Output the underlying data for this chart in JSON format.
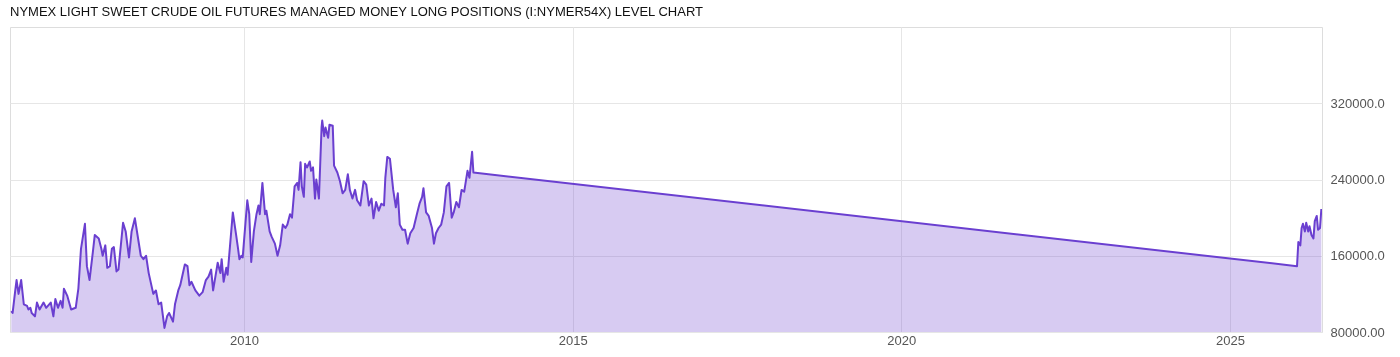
{
  "chart_data": {
    "type": "area",
    "title": "NYMEX LIGHT SWEET CRUDE OIL FUTURES MANAGED MONEY LONG POSITIONS (I:NYMER54X) LEVEL CHART",
    "x": [
      2006.46,
      2006.48,
      2006.52,
      2006.54,
      2006.57,
      2006.61,
      2006.65,
      2006.7,
      2006.72,
      2006.75,
      2006.77,
      2006.82,
      2006.85,
      2006.89,
      2006.95,
      2006.99,
      2007.06,
      2007.1,
      2007.13,
      2007.17,
      2007.21,
      2007.24,
      2007.26,
      2007.31,
      2007.37,
      2007.44,
      2007.48,
      2007.52,
      2007.58,
      2007.61,
      2007.65,
      2007.7,
      2007.73,
      2007.79,
      2007.83,
      2007.85,
      2007.89,
      2007.92,
      2007.96,
      2007.99,
      2008.02,
      2008.06,
      2008.09,
      2008.16,
      2008.2,
      2008.25,
      2008.29,
      2008.34,
      2008.38,
      2008.43,
      2008.47,
      2008.51,
      2008.55,
      2008.62,
      2008.66,
      2008.7,
      2008.74,
      2008.79,
      2008.83,
      2008.86,
      2008.92,
      2008.95,
      2009.0,
      2009.03,
      2009.1,
      2009.14,
      2009.17,
      2009.2,
      2009.26,
      2009.32,
      2009.37,
      2009.42,
      2009.46,
      2009.5,
      2009.53,
      2009.6,
      2009.64,
      2009.66,
      2009.69,
      2009.73,
      2009.75,
      2009.83,
      2009.88,
      2009.91,
      2009.93,
      2009.96,
      2009.98,
      2010.05,
      2010.08,
      2010.11,
      2010.15,
      2010.19,
      2010.22,
      2010.24,
      2010.28,
      2010.32,
      2010.34,
      2010.39,
      2010.42,
      2010.47,
      2010.51,
      2010.55,
      2010.59,
      2010.63,
      2010.66,
      2010.7,
      2010.73,
      2010.77,
      2010.81,
      2010.83,
      2010.86,
      2010.88,
      2010.91,
      2010.93,
      2010.96,
      2011.0,
      2011.02,
      2011.05,
      2011.08,
      2011.1,
      2011.14,
      2011.18,
      2011.19,
      2011.22,
      2011.24,
      2011.28,
      2011.3,
      2011.35,
      2011.37,
      2011.42,
      2011.46,
      2011.5,
      2011.54,
      2011.58,
      2011.61,
      2011.65,
      2011.69,
      2011.72,
      2011.77,
      2011.82,
      2011.86,
      2011.9,
      2011.94,
      2011.97,
      2012.01,
      2012.05,
      2012.09,
      2012.13,
      2012.15,
      2012.18,
      2012.22,
      2012.27,
      2012.31,
      2012.34,
      2012.37,
      2012.41,
      2012.45,
      2012.49,
      2012.53,
      2012.58,
      2012.63,
      2012.67,
      2012.71,
      2012.73,
      2012.77,
      2012.81,
      2012.86,
      2012.89,
      2012.92,
      2012.96,
      2013.0,
      2013.04,
      2013.08,
      2013.12,
      2013.16,
      2013.19,
      2013.23,
      2013.27,
      2013.31,
      2013.35,
      2013.4,
      2013.43,
      2013.47,
      2013.49,
      2026.02,
      2026.04,
      2026.07,
      2026.09,
      2026.11,
      2026.14,
      2026.16,
      2026.19,
      2026.21,
      2026.24,
      2026.27,
      2026.29,
      2026.32,
      2026.34,
      2026.37,
      2026.39
    ],
    "series": [
      {
        "color": "#6a3fd0",
        "values": [
          101800,
          100000,
          123600,
          134500,
          120000,
          134500,
          109100,
          107300,
          103600,
          105400,
          100000,
          96400,
          110900,
          103600,
          110900,
          105400,
          110900,
          96400,
          114500,
          105400,
          112700,
          105400,
          125400,
          118200,
          103600,
          105400,
          125400,
          167300,
          193500,
          149100,
          134500,
          163600,
          181800,
          178200,
          167300,
          160000,
          170900,
          147300,
          149100,
          167300,
          169100,
          143600,
          145500,
          194600,
          185500,
          158200,
          185500,
          199300,
          181800,
          160000,
          156400,
          160000,
          141800,
          120000,
          123600,
          109100,
          110900,
          84300,
          96400,
          100000,
          90900,
          109100,
          123600,
          129100,
          150900,
          149100,
          129100,
          132700,
          123600,
          118200,
          121800,
          134500,
          138200,
          145500,
          123600,
          152700,
          141800,
          156400,
          132700,
          147300,
          140000,
          205500,
          181800,
          167300,
          156400,
          160000,
          158200,
          218200,
          203600,
          153500,
          185500,
          203600,
          212700,
          203600,
          236400,
          203600,
          207300,
          185500,
          180000,
          172700,
          160000,
          170900,
          192700,
          189100,
          192700,
          203600,
          200000,
          232700,
          236400,
          229100,
          258200,
          232700,
          221800,
          256400,
          252700,
          258900,
          249100,
          252700,
          220000,
          240000,
          220000,
          294600,
          301800,
          285500,
          294600,
          283700,
          297500,
          296400,
          254600,
          247300,
          238200,
          225500,
          229100,
          245500,
          229100,
          220000,
          229100,
          218200,
          212700,
          238200,
          234600,
          212700,
          220000,
          199300,
          216400,
          207300,
          214600,
          212700,
          241800,
          263700,
          261800,
          229100,
          210900,
          225500,
          192700,
          187300,
          187300,
          172700,
          183600,
          189100,
          203600,
          214600,
          221800,
          230900,
          205500,
          201800,
          189100,
          172700,
          183600,
          189100,
          192700,
          205500,
          232700,
          236400,
          200000,
          205500,
          216400,
          210900,
          229100,
          227300,
          249100,
          241800,
          269100,
          247300,
          149100,
          174500,
          170900,
          189100,
          193500,
          185500,
          194600,
          185500,
          190900,
          181800,
          178200,
          196400,
          201800,
          187300,
          189100,
          209100
        ]
      }
    ],
    "xlim": [
      2006.44,
      2026.4
    ],
    "xticks": [
      2010,
      2015,
      2020,
      2025
    ],
    "ylim": [
      80000,
      400000
    ],
    "yticks": [
      {
        "value": 80000,
        "label": "80000.00"
      },
      {
        "value": 160000,
        "label": "160000.0"
      },
      {
        "value": 240000,
        "label": "240000.0"
      },
      {
        "value": 320000,
        "label": "320000.0"
      }
    ],
    "grid": true
  }
}
